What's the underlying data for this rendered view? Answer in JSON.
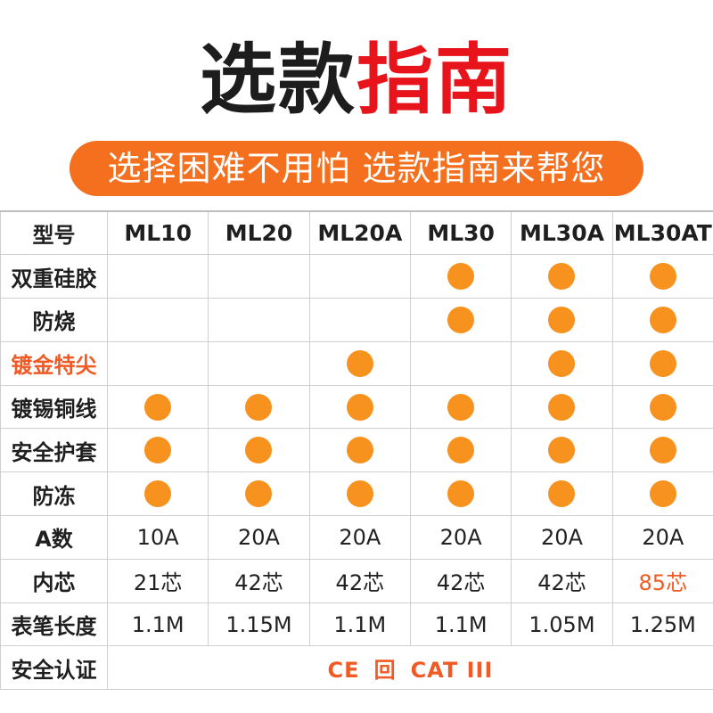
{
  "title": {
    "part1": "选款",
    "part2": "指南"
  },
  "banner": {
    "text": "选择困难不用怕 选款指南来帮您"
  },
  "colors": {
    "dot": "#f7921e",
    "accent": "#f15a24",
    "banner": "#f46f1e",
    "title_red": "#e8141c"
  },
  "table": {
    "header_label": "型号",
    "models": [
      "ML10",
      "ML20",
      "ML20A",
      "ML30",
      "ML30A",
      "ML30AT"
    ],
    "feature_rows": [
      {
        "label": "双重硅胶",
        "accent": false,
        "has": [
          false,
          false,
          false,
          true,
          true,
          true
        ]
      },
      {
        "label": "防烧",
        "accent": false,
        "has": [
          false,
          false,
          false,
          true,
          true,
          true
        ]
      },
      {
        "label": "镀金特尖",
        "accent": true,
        "has": [
          false,
          false,
          true,
          false,
          true,
          true
        ]
      },
      {
        "label": "镀锡铜线",
        "accent": false,
        "has": [
          true,
          true,
          true,
          true,
          true,
          true
        ]
      },
      {
        "label": "安全护套",
        "accent": false,
        "has": [
          true,
          true,
          true,
          true,
          true,
          true
        ]
      },
      {
        "label": "防冻",
        "accent": false,
        "has": [
          true,
          true,
          true,
          true,
          true,
          true
        ]
      }
    ],
    "value_rows": [
      {
        "label": "A数",
        "values": [
          "10A",
          "20A",
          "20A",
          "20A",
          "20A",
          "20A"
        ],
        "accent_index": -1
      },
      {
        "label": "内芯",
        "values": [
          "21芯",
          "42芯",
          "42芯",
          "42芯",
          "42芯",
          "85芯"
        ],
        "accent_index": 5
      },
      {
        "label": "表笔长度",
        "values": [
          "1.1M",
          "1.15M",
          "1.1M",
          "1.1M",
          "1.05M",
          "1.25M"
        ],
        "accent_index": -1
      }
    ],
    "cert_row": {
      "label": "安全认证",
      "items": [
        "CE",
        "回",
        "CAT III"
      ]
    }
  }
}
